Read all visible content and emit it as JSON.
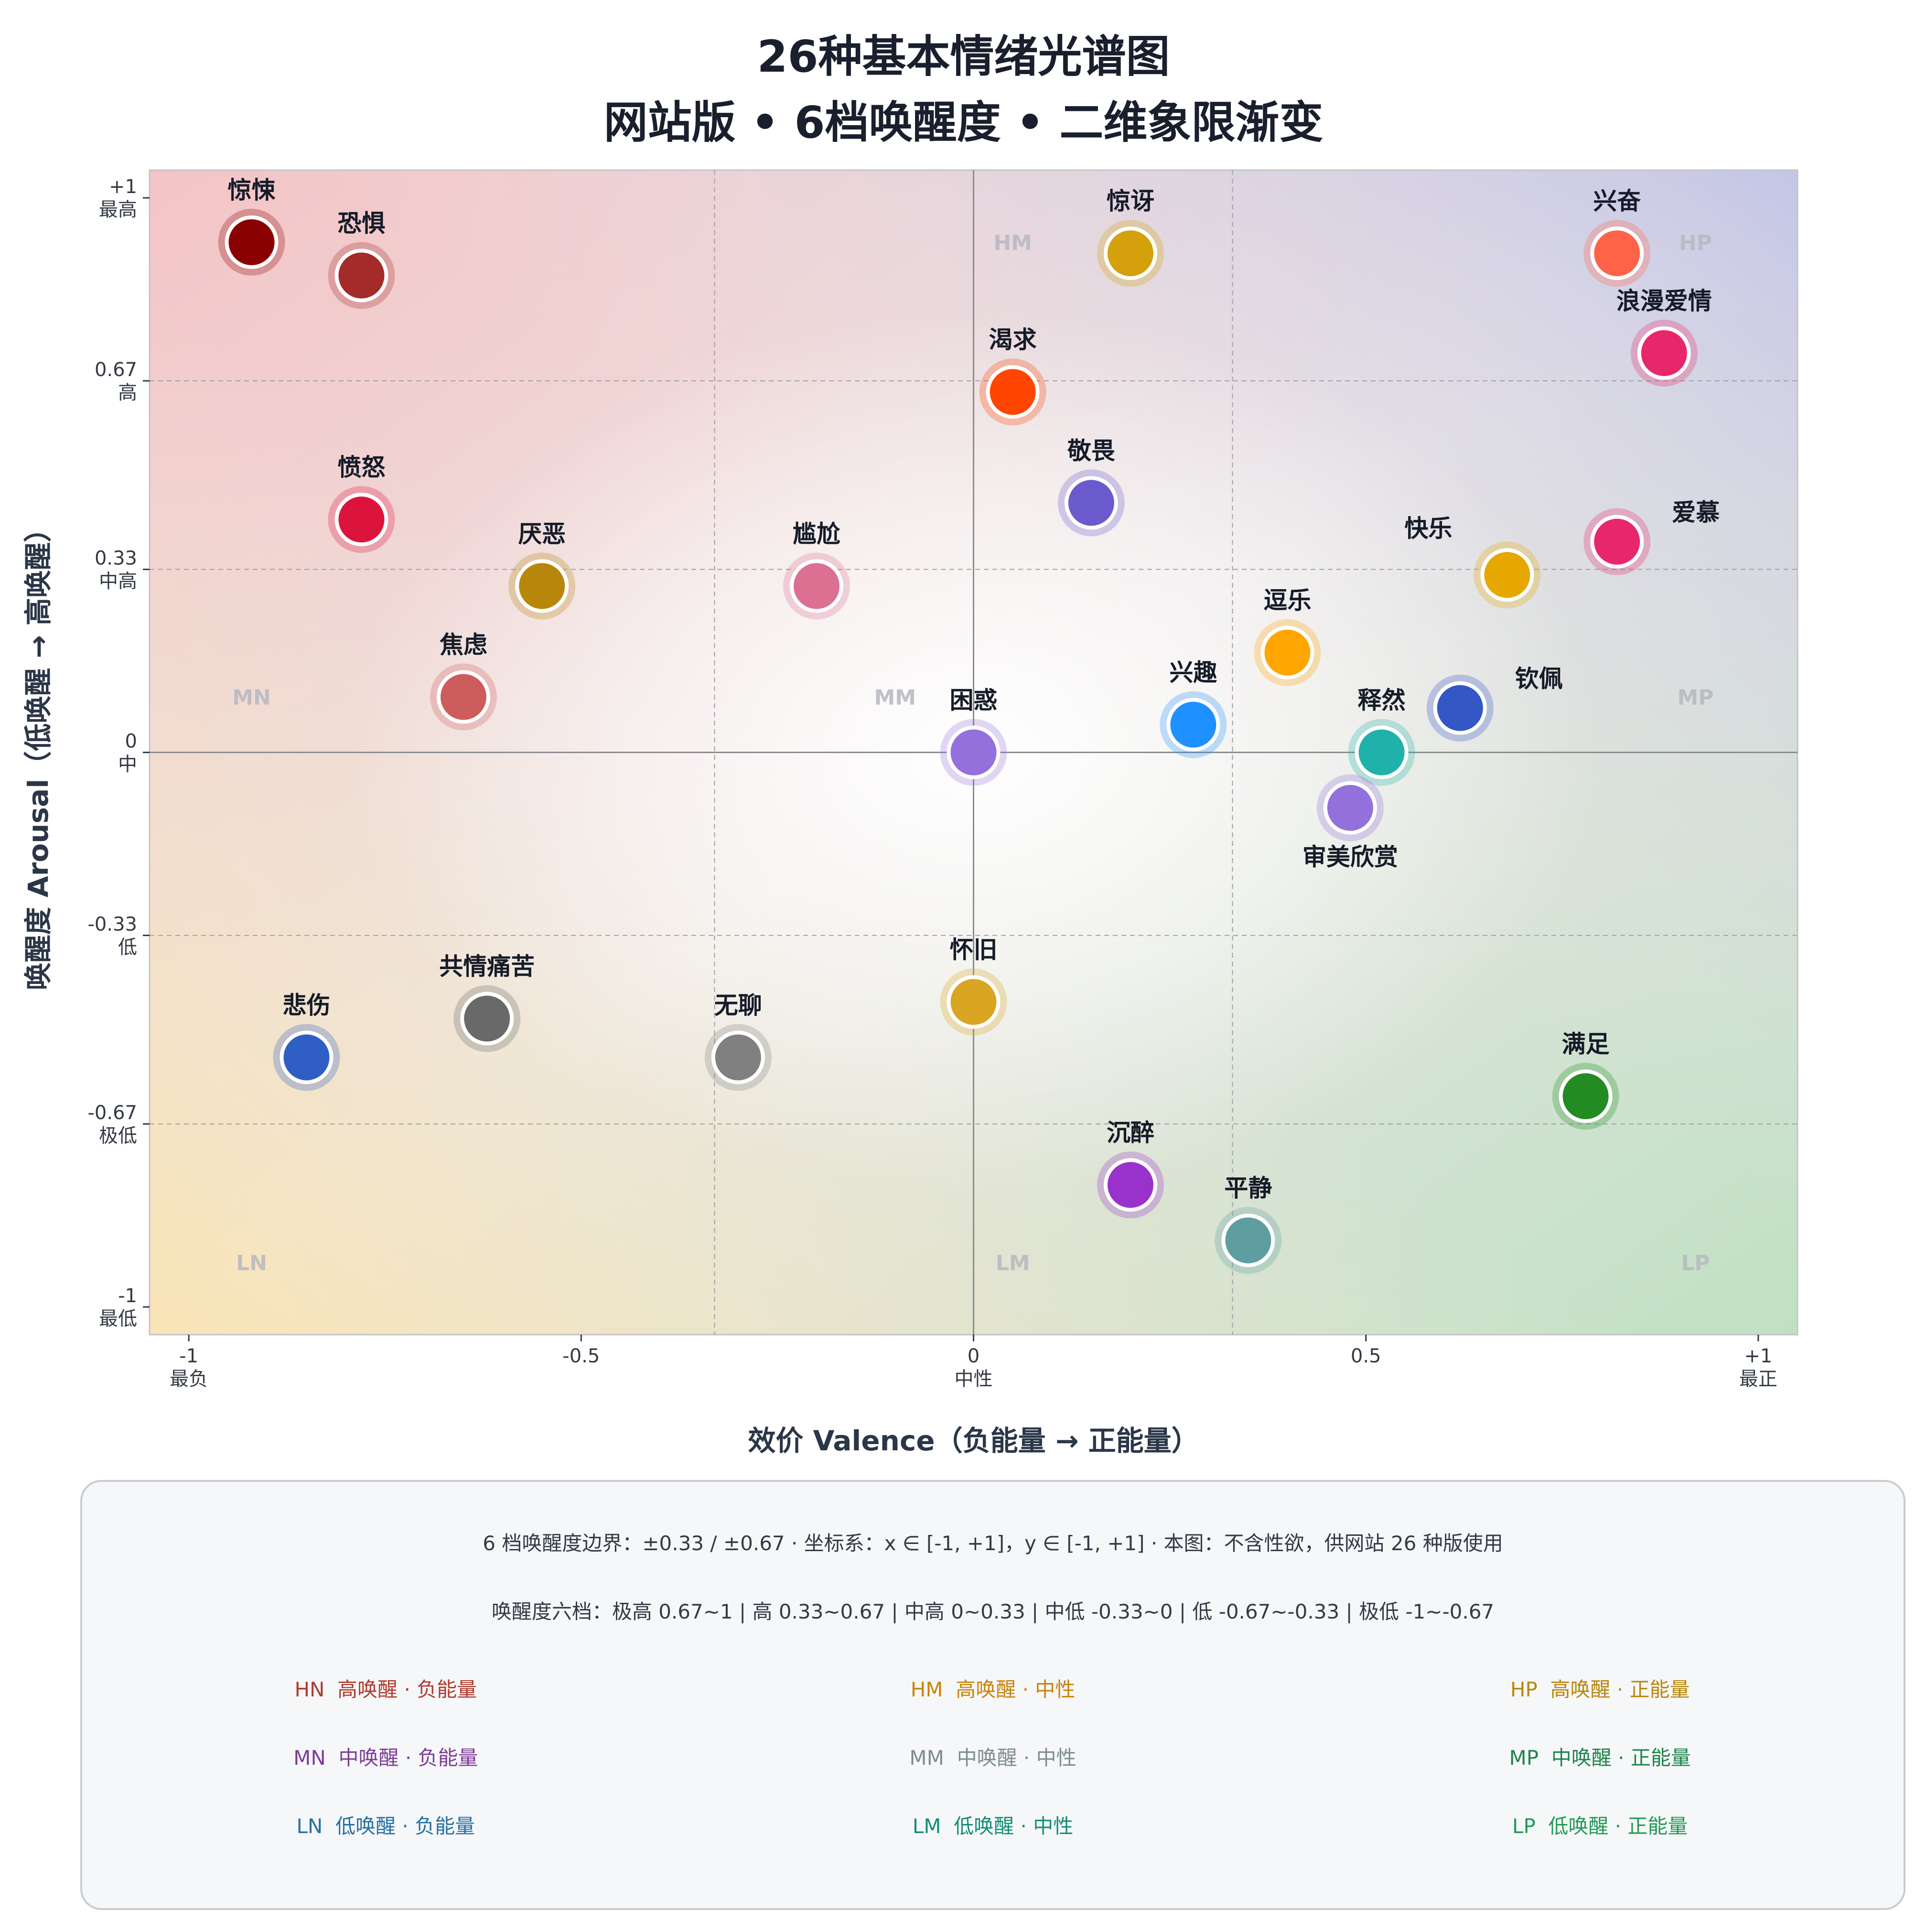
{
  "title": {
    "line1": "26种基本情绪光谱图",
    "line2": "网站版 • 6档唤醒度 • 二维象限渐变"
  },
  "chart_data": {
    "type": "scatter",
    "title": "26种基本情绪光谱图 / 网站版 • 6档唤醒度 • 二维象限渐变",
    "xlabel": "效价 Valence（负能量 → 正能量）",
    "ylabel": "唤醒度 Arousal（低唤醒 → 高唤醒）",
    "xlim": [
      -1.05,
      1.05
    ],
    "ylim": [
      -1.05,
      1.05
    ],
    "x_ticks": [
      {
        "value": -1,
        "label": "-1",
        "sub": "最负"
      },
      {
        "value": -0.5,
        "label": "-0.5",
        "sub": ""
      },
      {
        "value": 0,
        "label": "0",
        "sub": "中性"
      },
      {
        "value": 0.5,
        "label": "0.5",
        "sub": ""
      },
      {
        "value": 1,
        "label": "+1",
        "sub": "最正"
      }
    ],
    "y_ticks": [
      {
        "value": 1,
        "label": "+1",
        "sub": "最高"
      },
      {
        "value": 0.67,
        "label": "0.67",
        "sub": "高"
      },
      {
        "value": 0.33,
        "label": "0.33",
        "sub": "中高"
      },
      {
        "value": 0,
        "label": "0",
        "sub": "中"
      },
      {
        "value": -0.33,
        "label": "-0.33",
        "sub": "低"
      },
      {
        "value": -0.67,
        "label": "-0.67",
        "sub": "极低"
      },
      {
        "value": -1,
        "label": "-1",
        "sub": "最低"
      }
    ],
    "grid": "dashed at ±0.33 / ±0.67; solid axes at 0",
    "region_labels": [
      {
        "text": "HM",
        "x": 0.05,
        "y": 0.92
      },
      {
        "text": "HP",
        "x": 0.92,
        "y": 0.92
      },
      {
        "text": "MN",
        "x": -0.92,
        "y": 0.1
      },
      {
        "text": "MM",
        "x": -0.1,
        "y": 0.1
      },
      {
        "text": "MP",
        "x": 0.92,
        "y": 0.1
      },
      {
        "text": "LN",
        "x": -0.92,
        "y": -0.92
      },
      {
        "text": "LM",
        "x": 0.05,
        "y": -0.92
      },
      {
        "text": "LP",
        "x": 0.92,
        "y": -0.92
      }
    ],
    "points": [
      {
        "name": "惊悚",
        "x": -0.92,
        "y": 0.92,
        "color": "#8b0000",
        "label_pos": "top"
      },
      {
        "name": "恐惧",
        "x": -0.78,
        "y": 0.86,
        "color": "#a52a2a",
        "label_pos": "top"
      },
      {
        "name": "惊讶",
        "x": 0.2,
        "y": 0.9,
        "color": "#d4a00c",
        "label_pos": "top"
      },
      {
        "name": "兴奋",
        "x": 0.82,
        "y": 0.9,
        "color": "#ff6347",
        "label_pos": "top"
      },
      {
        "name": "浪漫爱情",
        "x": 0.88,
        "y": 0.72,
        "color": "#e8266b",
        "label_pos": "top"
      },
      {
        "name": "渴求",
        "x": 0.05,
        "y": 0.65,
        "color": "#ff4500",
        "label_pos": "top"
      },
      {
        "name": "愤怒",
        "x": -0.78,
        "y": 0.42,
        "color": "#dc143c",
        "label_pos": "top"
      },
      {
        "name": "敬畏",
        "x": 0.15,
        "y": 0.45,
        "color": "#6a5acd",
        "label_pos": "top"
      },
      {
        "name": "爱慕",
        "x": 0.82,
        "y": 0.38,
        "color": "#e8266b",
        "label_pos": "upper-right"
      },
      {
        "name": "厌恶",
        "x": -0.55,
        "y": 0.3,
        "color": "#b8860b",
        "label_pos": "top"
      },
      {
        "name": "尴尬",
        "x": -0.2,
        "y": 0.3,
        "color": "#db7093",
        "label_pos": "top"
      },
      {
        "name": "快乐",
        "x": 0.68,
        "y": 0.32,
        "color": "#e6a800",
        "label_pos": "upper-left"
      },
      {
        "name": "逗乐",
        "x": 0.4,
        "y": 0.18,
        "color": "#ffa500",
        "label_pos": "top"
      },
      {
        "name": "焦虑",
        "x": -0.65,
        "y": 0.1,
        "color": "#cd5c5c",
        "label_pos": "top"
      },
      {
        "name": "兴趣",
        "x": 0.28,
        "y": 0.05,
        "color": "#1e90ff",
        "label_pos": "top"
      },
      {
        "name": "钦佩",
        "x": 0.62,
        "y": 0.08,
        "color": "#3357c4",
        "label_pos": "upper-right"
      },
      {
        "name": "困惑",
        "x": 0.0,
        "y": 0.0,
        "color": "#9370db",
        "label_pos": "top"
      },
      {
        "name": "释然",
        "x": 0.52,
        "y": 0.0,
        "color": "#20b2aa",
        "label_pos": "top"
      },
      {
        "name": "审美欣赏",
        "x": 0.48,
        "y": -0.1,
        "color": "#9370db",
        "label_pos": "bottom"
      },
      {
        "name": "怀旧",
        "x": 0.0,
        "y": -0.45,
        "color": "#daa520",
        "label_pos": "top"
      },
      {
        "name": "共情痛苦",
        "x": -0.62,
        "y": -0.48,
        "color": "#696969",
        "label_pos": "top"
      },
      {
        "name": "悲伤",
        "x": -0.85,
        "y": -0.55,
        "color": "#2f5fc4",
        "label_pos": "top"
      },
      {
        "name": "无聊",
        "x": -0.3,
        "y": -0.55,
        "color": "#808080",
        "label_pos": "top"
      },
      {
        "name": "满足",
        "x": 0.78,
        "y": -0.62,
        "color": "#228b22",
        "label_pos": "top"
      },
      {
        "name": "沉醉",
        "x": 0.2,
        "y": -0.78,
        "color": "#9932cc",
        "label_pos": "top"
      },
      {
        "name": "平静",
        "x": 0.35,
        "y": -0.88,
        "color": "#5f9ea0",
        "label_pos": "top"
      }
    ]
  },
  "legend": {
    "line1": "6 档唤醒度边界：±0.33 / ±0.67  ·  坐标系：x ∈ [-1, +1]，y ∈ [-1, +1]  ·  本图：不含性欲，供网站 26 种版使用",
    "line2": "唤醒度六档：极高 0.67~1   |   高 0.33~0.67   |   中高 0~0.33   |   中低 -0.33~0   |   低 -0.67~-0.33   |   极低 -1~-0.67",
    "regions": [
      {
        "code": "HN",
        "text": "高唤醒 · 负能量",
        "color": "#b03a2e"
      },
      {
        "code": "HM",
        "text": "高唤醒 · 中性",
        "color": "#c9830c"
      },
      {
        "code": "HP",
        "text": "高唤醒 · 正能量",
        "color": "#b9860b"
      },
      {
        "code": "MN",
        "text": "中唤醒 · 负能量",
        "color": "#7d3c98"
      },
      {
        "code": "MM",
        "text": "中唤醒 · 中性",
        "color": "#7f8c8d"
      },
      {
        "code": "MP",
        "text": "中唤醒 · 正能量",
        "color": "#1e8449"
      },
      {
        "code": "LN",
        "text": "低唤醒 · 负能量",
        "color": "#2471a3"
      },
      {
        "code": "LM",
        "text": "低唤醒 · 中性",
        "color": "#138d75"
      },
      {
        "code": "LP",
        "text": "低唤醒 · 正能量",
        "color": "#229954"
      }
    ]
  }
}
